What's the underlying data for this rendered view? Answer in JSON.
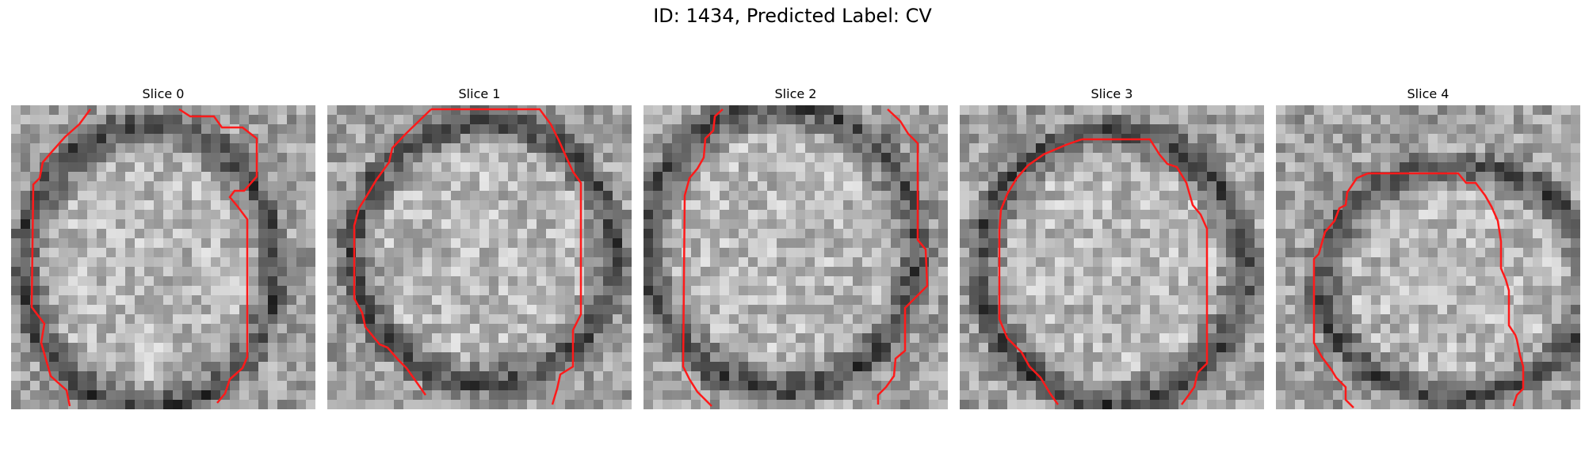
{
  "figure": {
    "title": "ID: 1434, Predicted Label: CV"
  },
  "colors": {
    "contour": "#ff1a1a",
    "background": "#ffffff"
  },
  "panels": [
    {
      "title": "Slice 0"
    },
    {
      "title": "Slice 1"
    },
    {
      "title": "Slice 2"
    },
    {
      "title": "Slice 3"
    },
    {
      "title": "Slice 4"
    }
  ]
}
